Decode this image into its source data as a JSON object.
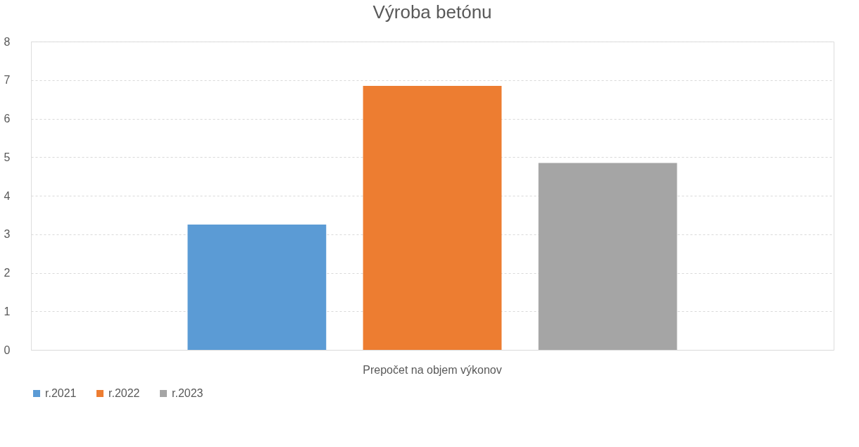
{
  "chart_data": {
    "type": "bar",
    "title": "Výroba betónu",
    "categories": [
      "Prepočet na objem výkonov"
    ],
    "series": [
      {
        "name": "r.2021",
        "color": "#5b9bd5",
        "values": [
          3.25
        ]
      },
      {
        "name": "r.2022",
        "color": "#ed7d31",
        "values": [
          6.85
        ]
      },
      {
        "name": "r.2023",
        "color": "#a5a5a5",
        "values": [
          4.85
        ]
      }
    ],
    "ylim": [
      0,
      8
    ],
    "yticks": [
      0,
      1,
      2,
      3,
      4,
      5,
      6,
      7,
      8
    ],
    "grid": "y",
    "legend": "bottom"
  }
}
